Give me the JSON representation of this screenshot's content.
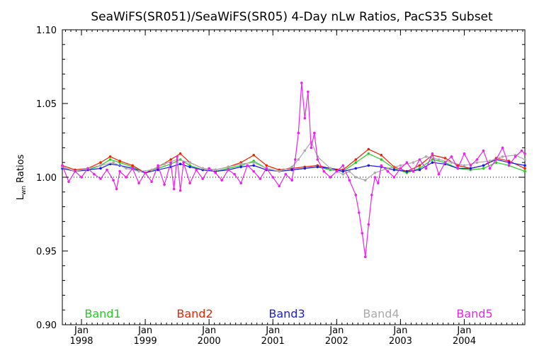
{
  "chart_data": {
    "type": "line",
    "title": "SeaWiFS(SR051)/SeaWiFS(SR05) 4-Day nLw Ratios, PacS35 Subset",
    "ylabel_main": "L",
    "ylabel_sub": "wn",
    "ylabel_rest": " Ratios",
    "xlabel": "",
    "xlim": [
      1997.7,
      2004.95
    ],
    "ylim": [
      0.9,
      1.1
    ],
    "yticks": [
      {
        "value": 0.9,
        "label": "0.90"
      },
      {
        "value": 0.95,
        "label": "0.95"
      },
      {
        "value": 1.0,
        "label": "1.00"
      },
      {
        "value": 1.05,
        "label": "1.05"
      },
      {
        "value": 1.1,
        "label": "1.10"
      }
    ],
    "xticks": [
      {
        "value": 1998,
        "month": "Jan",
        "year": "1998"
      },
      {
        "value": 1999,
        "month": "Jan",
        "year": "1999"
      },
      {
        "value": 2000,
        "month": "Jan",
        "year": "2000"
      },
      {
        "value": 2001,
        "month": "Jan",
        "year": "2001"
      },
      {
        "value": 2002,
        "month": "Jan",
        "year": "2002"
      },
      {
        "value": 2003,
        "month": "Jan",
        "year": "2003"
      },
      {
        "value": 2004,
        "month": "Jan",
        "year": "2004"
      }
    ],
    "reference_line": 1.0,
    "grid": false,
    "legend_position": "bottom",
    "series": [
      {
        "name": "Band1",
        "color": "#22cc22",
        "x": [
          1997.7,
          1997.9,
          1998.1,
          1998.3,
          1998.45,
          1998.6,
          1998.8,
          1999.0,
          1999.2,
          1999.4,
          1999.55,
          1999.7,
          1999.9,
          2000.1,
          2000.3,
          2000.5,
          2000.7,
          2000.9,
          2001.1,
          2001.3,
          2001.5,
          2001.7,
          2001.9,
          2002.1,
          2002.3,
          2002.5,
          2002.7,
          2002.9,
          2003.1,
          2003.3,
          2003.5,
          2003.7,
          2003.9,
          2004.1,
          2004.3,
          2004.5,
          2004.7,
          2004.95
        ],
        "y": [
          1.007,
          1.004,
          1.005,
          1.008,
          1.012,
          1.01,
          1.007,
          1.003,
          1.006,
          1.009,
          1.012,
          1.008,
          1.005,
          1.004,
          1.006,
          1.008,
          1.011,
          1.006,
          1.004,
          1.005,
          1.006,
          1.007,
          1.005,
          1.004,
          1.01,
          1.016,
          1.012,
          1.006,
          1.003,
          1.006,
          1.012,
          1.01,
          1.006,
          1.005,
          1.006,
          1.01,
          1.008,
          1.004
        ]
      },
      {
        "name": "Band2",
        "color": "#ee2200",
        "x": [
          1997.7,
          1997.9,
          1998.1,
          1998.3,
          1998.45,
          1998.6,
          1998.8,
          1999.0,
          1999.2,
          1999.4,
          1999.55,
          1999.7,
          1999.9,
          2000.1,
          2000.3,
          2000.5,
          2000.7,
          2000.9,
          2001.1,
          2001.3,
          2001.5,
          2001.7,
          2001.9,
          2002.1,
          2002.3,
          2002.5,
          2002.7,
          2002.9,
          2003.1,
          2003.3,
          2003.5,
          2003.7,
          2003.9,
          2004.1,
          2004.3,
          2004.5,
          2004.7,
          2004.95
        ],
        "y": [
          1.008,
          1.005,
          1.006,
          1.01,
          1.014,
          1.011,
          1.008,
          1.003,
          1.007,
          1.012,
          1.016,
          1.01,
          1.006,
          1.005,
          1.007,
          1.01,
          1.015,
          1.008,
          1.005,
          1.006,
          1.007,
          1.008,
          1.006,
          1.005,
          1.012,
          1.019,
          1.015,
          1.007,
          1.004,
          1.008,
          1.015,
          1.013,
          1.008,
          1.006,
          1.008,
          1.013,
          1.011,
          1.006
        ]
      },
      {
        "name": "Band3",
        "color": "#1a1aee",
        "x": [
          1997.7,
          1997.9,
          1998.1,
          1998.3,
          1998.45,
          1998.6,
          1998.8,
          1999.0,
          1999.2,
          1999.4,
          1999.55,
          1999.7,
          1999.9,
          2000.1,
          2000.3,
          2000.5,
          2000.7,
          2000.9,
          2001.1,
          2001.3,
          2001.5,
          2001.7,
          2001.9,
          2002.1,
          2002.3,
          2002.5,
          2002.7,
          2002.9,
          2003.1,
          2003.3,
          2003.5,
          2003.7,
          2003.9,
          2004.1,
          2004.3,
          2004.5,
          2004.7,
          2004.95
        ],
        "y": [
          1.006,
          1.004,
          1.005,
          1.006,
          1.009,
          1.008,
          1.006,
          1.003,
          1.005,
          1.007,
          1.009,
          1.007,
          1.005,
          1.004,
          1.005,
          1.007,
          1.008,
          1.005,
          1.004,
          1.005,
          1.006,
          1.007,
          1.006,
          1.004,
          1.006,
          1.008,
          1.007,
          1.005,
          1.004,
          1.005,
          1.01,
          1.009,
          1.006,
          1.006,
          1.008,
          1.012,
          1.01,
          1.008
        ]
      },
      {
        "name": "Band4",
        "color": "#aaaaaa",
        "x": [
          1997.7,
          1997.9,
          1998.1,
          1998.3,
          1998.5,
          1998.7,
          1998.9,
          1999.1,
          1999.3,
          1999.5,
          1999.7,
          1999.9,
          2000.1,
          2000.3,
          2000.5,
          2000.7,
          2000.9,
          2001.1,
          2001.3,
          2001.4,
          2001.5,
          2001.6,
          2001.7,
          2001.9,
          2002.1,
          2002.2,
          2002.3,
          2002.45,
          2002.6,
          2002.8,
          2003.0,
          2003.2,
          2003.4,
          2003.6,
          2003.8,
          2004.0,
          2004.2,
          2004.4,
          2004.6,
          2004.8,
          2004.95
        ],
        "y": [
          1.007,
          1.004,
          1.006,
          1.008,
          1.01,
          1.006,
          1.004,
          1.005,
          1.009,
          1.012,
          1.01,
          1.006,
          1.005,
          1.007,
          1.009,
          1.01,
          1.006,
          1.004,
          1.007,
          1.012,
          1.018,
          1.024,
          1.014,
          1.006,
          1.002,
          1.004,
          1.0,
          0.998,
          1.003,
          1.006,
          1.008,
          1.01,
          1.014,
          1.012,
          1.01,
          1.008,
          1.01,
          1.011,
          1.014,
          1.015,
          1.012
        ]
      },
      {
        "name": "Band5",
        "color": "#ee22ee",
        "x": [
          1997.7,
          1997.8,
          1997.9,
          1998.0,
          1998.1,
          1998.2,
          1998.3,
          1998.4,
          1998.5,
          1998.55,
          1998.6,
          1998.7,
          1998.8,
          1998.9,
          1999.0,
          1999.1,
          1999.2,
          1999.3,
          1999.4,
          1999.45,
          1999.5,
          1999.55,
          1999.6,
          1999.7,
          1999.8,
          1999.9,
          2000.0,
          2000.1,
          2000.2,
          2000.3,
          2000.4,
          2000.5,
          2000.6,
          2000.7,
          2000.8,
          2000.9,
          2001.0,
          2001.1,
          2001.2,
          2001.3,
          2001.35,
          2001.4,
          2001.45,
          2001.5,
          2001.55,
          2001.6,
          2001.65,
          2001.7,
          2001.8,
          2001.9,
          2002.0,
          2002.1,
          2002.2,
          2002.3,
          2002.35,
          2002.4,
          2002.45,
          2002.5,
          2002.55,
          2002.6,
          2002.65,
          2002.7,
          2002.8,
          2002.9,
          2003.0,
          2003.1,
          2003.2,
          2003.3,
          2003.4,
          2003.5,
          2003.6,
          2003.7,
          2003.8,
          2003.9,
          2004.0,
          2004.1,
          2004.2,
          2004.3,
          2004.4,
          2004.5,
          2004.6,
          2004.7,
          2004.8,
          2004.9,
          2004.95
        ],
        "y": [
          1.008,
          0.997,
          1.004,
          1.0,
          1.006,
          1.002,
          0.999,
          1.005,
          0.998,
          0.992,
          1.004,
          1.0,
          1.006,
          0.996,
          1.003,
          0.997,
          1.008,
          0.995,
          1.01,
          0.992,
          1.014,
          0.991,
          1.01,
          0.996,
          1.005,
          0.999,
          1.006,
          1.003,
          0.998,
          1.005,
          1.002,
          0.996,
          1.008,
          1.004,
          0.999,
          1.006,
          1.0,
          0.994,
          1.002,
          0.998,
          1.012,
          1.03,
          1.064,
          1.04,
          1.058,
          1.02,
          1.03,
          1.012,
          1.004,
          1.0,
          1.004,
          1.008,
          0.998,
          0.988,
          0.976,
          0.962,
          0.946,
          0.968,
          0.988,
          1.0,
          0.996,
          1.008,
          1.004,
          1.0,
          1.006,
          1.01,
          1.004,
          1.012,
          1.006,
          1.016,
          1.002,
          1.01,
          1.014,
          1.006,
          1.016,
          1.008,
          1.012,
          1.018,
          1.006,
          1.012,
          1.02,
          1.008,
          1.014,
          1.018,
          1.016
        ]
      }
    ]
  }
}
